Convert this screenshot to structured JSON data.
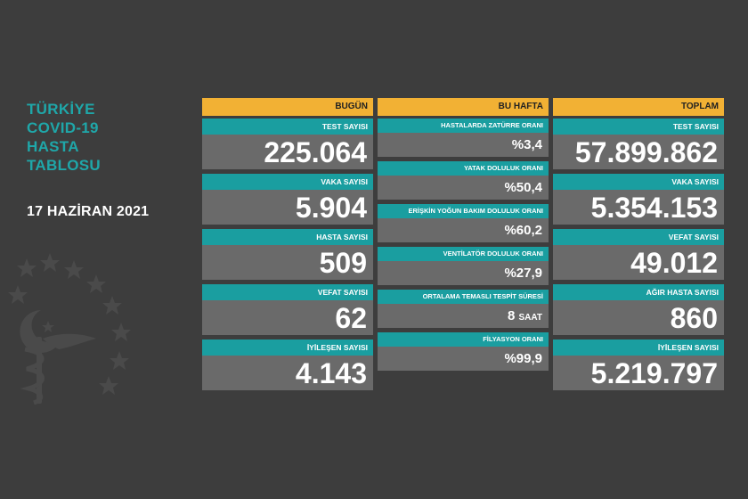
{
  "title": {
    "line1": "TÜRKİYE",
    "line2": "COVID-19",
    "line3": "HASTA",
    "line4": "TABLOSU"
  },
  "date": "17 HAZİRAN 2021",
  "colors": {
    "background": "#3d3d3d",
    "accent": "#1a9ea0",
    "header": "#f2b134",
    "value_bg": "#6a6a6a"
  },
  "emblem_icon": "health-ministry-emblem-icon",
  "today": {
    "header": "BUGÜN",
    "items": [
      {
        "label": "TEST SAYISI",
        "value": "225.064"
      },
      {
        "label": "VAKA SAYISI",
        "value": "5.904"
      },
      {
        "label": "HASTA SAYISI",
        "value": "509"
      },
      {
        "label": "VEFAT SAYISI",
        "value": "62"
      },
      {
        "label": "İYİLEŞEN SAYISI",
        "value": "4.143"
      }
    ]
  },
  "week": {
    "header": "BU HAFTA",
    "items": [
      {
        "label": "HASTALARDA ZATÜRRE ORANI",
        "value": "%3,4"
      },
      {
        "label": "YATAK DOLULUK ORANI",
        "value": "%50,4"
      },
      {
        "label": "ERİŞKİN YOĞUN BAKIM DOLULUK ORANI",
        "value": "%60,2"
      },
      {
        "label": "VENTİLATÖR DOLULUK ORANI",
        "value": "%27,9"
      },
      {
        "label": "ORTALAMA TEMASLI TESPİT SÜRESİ",
        "value": "8",
        "unit": "SAAT"
      },
      {
        "label": "FİLYASYON ORANI",
        "value": "%99,9"
      }
    ]
  },
  "total": {
    "header": "TOPLAM",
    "items": [
      {
        "label": "TEST SAYISI",
        "value": "57.899.862"
      },
      {
        "label": "VAKA SAYISI",
        "value": "5.354.153"
      },
      {
        "label": "VEFAT SAYISI",
        "value": "49.012"
      },
      {
        "label": "AĞIR HASTA SAYISI",
        "value": "860"
      },
      {
        "label": "İYİLEŞEN SAYISI",
        "value": "5.219.797"
      }
    ]
  }
}
